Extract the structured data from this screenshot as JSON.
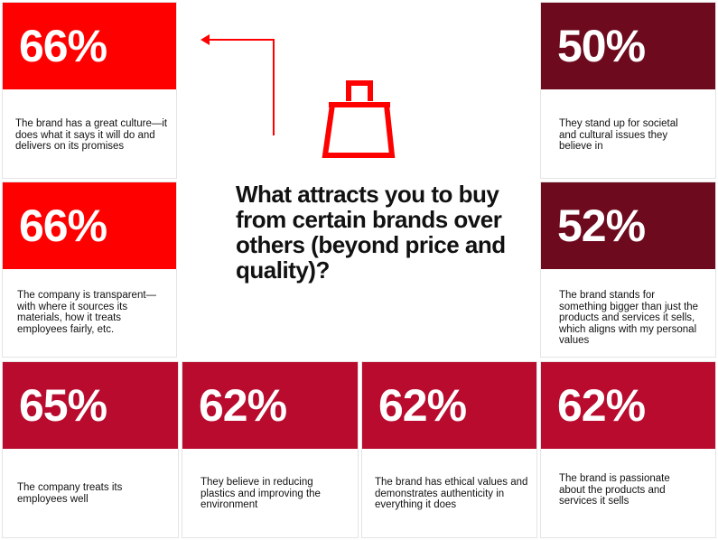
{
  "question": "What attracts you to buy from certain brands over others (beyond price and quality)?",
  "colors": {
    "red": "#ff0000",
    "maroon": "#6e0a1e",
    "crimson": "#b80b2e"
  },
  "icon": "shopping-bag-icon",
  "cards": [
    {
      "percent": "66%",
      "text": "The brand has a great culture—it does what it says it will do and delivers on its promises"
    },
    {
      "percent": "66%",
      "text": "The company is transparent—with where it sources its materials, how it treats employees fairly, etc."
    },
    {
      "percent": "50%",
      "text": "They stand up for societal and cultural issues they believe in"
    },
    {
      "percent": "52%",
      "text": "The brand stands for something bigger than just the products and services it sells, which aligns with my personal values"
    },
    {
      "percent": "65%",
      "text": "The company treats its employees well"
    },
    {
      "percent": "62%",
      "text": "They believe in reducing plastics and improving the environment"
    },
    {
      "percent": "62%",
      "text": "The brand has ethical values and demonstrates authenticity in everything it does"
    },
    {
      "percent": "62%",
      "text": "The brand is passionate about the products and services it sells"
    }
  ]
}
